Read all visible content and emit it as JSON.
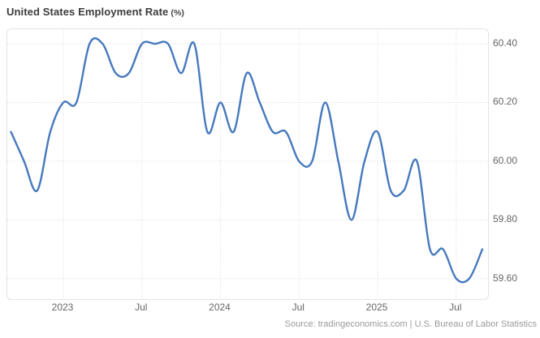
{
  "header": {
    "title": "United States Employment Rate",
    "title_suffix": "(%)"
  },
  "footer": {
    "source": "Source: tradingeconomics.com | U.S. Bureau of Labor Statistics"
  },
  "colors": {
    "line": "#4679be",
    "grid": "#d9d9d9",
    "frame_border": "#e3e3e3",
    "title_text": "#3c3c3c",
    "tick_text": "#666666",
    "source_text": "#9a9a9a",
    "background": "#ffffff"
  },
  "chart_data": {
    "type": "line",
    "style": "smooth-spline",
    "title": "United States Employment Rate (%)",
    "xlabel": "",
    "ylabel": "Employment Rate (%)",
    "legend": "none",
    "grid": "dotted",
    "y_axis_side": "right",
    "ylim": [
      59.53,
      60.45
    ],
    "y_ticks": [
      60.4,
      60.2,
      60.0,
      59.8,
      59.6
    ],
    "x_ticks": [
      {
        "label": "2023",
        "index": 4
      },
      {
        "label": "Jul",
        "index": 10
      },
      {
        "label": "2024",
        "index": 16
      },
      {
        "label": "Jul",
        "index": 22
      },
      {
        "label": "2025",
        "index": 28
      },
      {
        "label": "Jul",
        "index": 34
      }
    ],
    "x": [
      "2022-09",
      "2022-10",
      "2022-11",
      "2022-12",
      "2023-01",
      "2023-02",
      "2023-03",
      "2023-04",
      "2023-05",
      "2023-06",
      "2023-07",
      "2023-08",
      "2023-09",
      "2023-10",
      "2023-11",
      "2023-12",
      "2024-01",
      "2024-02",
      "2024-03",
      "2024-04",
      "2024-05",
      "2024-06",
      "2024-07",
      "2024-08",
      "2024-09",
      "2024-10",
      "2024-11",
      "2024-12",
      "2025-01",
      "2025-02",
      "2025-03",
      "2025-04",
      "2025-05",
      "2025-06",
      "2025-07",
      "2025-08",
      "2025-09"
    ],
    "values": [
      60.1,
      60.0,
      59.9,
      60.1,
      60.2,
      60.2,
      60.4,
      60.4,
      60.3,
      60.3,
      60.4,
      60.4,
      60.4,
      60.3,
      60.4,
      60.1,
      60.2,
      60.1,
      60.3,
      60.2,
      60.1,
      60.1,
      60.0,
      60.0,
      60.2,
      60.0,
      59.8,
      60.0,
      60.1,
      59.9,
      59.9,
      60.0,
      59.7,
      59.7,
      59.6,
      59.6,
      59.7
    ]
  }
}
